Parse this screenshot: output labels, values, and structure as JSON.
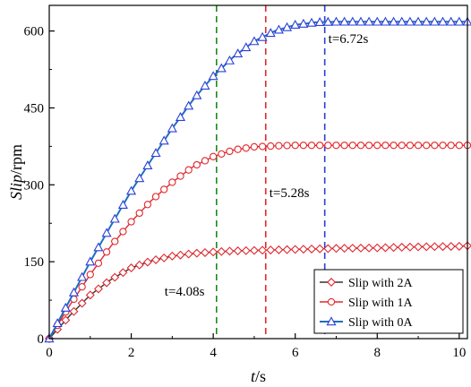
{
  "chart_data": {
    "type": "line",
    "xlabel_italic": "t",
    "xlabel_unit": "/s",
    "ylabel_italic": "Slip",
    "ylabel_unit": "/rpm",
    "xlim": [
      0,
      10.2
    ],
    "ylim": [
      0,
      650
    ],
    "xticks": [
      0,
      2,
      4,
      6,
      8,
      10
    ],
    "yticks": [
      0,
      150,
      300,
      450,
      600
    ],
    "grid": false,
    "legend_position": "bottom-right",
    "vlines": [
      {
        "x": 4.08,
        "color": "#1a8a1a",
        "label": "t=4.08s"
      },
      {
        "x": 5.28,
        "color": "#e0282e",
        "label": "t=5.28s"
      },
      {
        "x": 6.72,
        "color": "#2a3fd6",
        "label": "t=6.72s"
      }
    ],
    "series": [
      {
        "name": "Slip with 2A",
        "color": "#e0282e",
        "line_color": "#333333",
        "marker": "diamond",
        "points": [
          [
            0,
            0
          ],
          [
            0.5,
            45
          ],
          [
            1,
            85
          ],
          [
            1.5,
            115
          ],
          [
            2,
            138
          ],
          [
            2.5,
            152
          ],
          [
            3,
            161
          ],
          [
            3.5,
            166
          ],
          [
            4,
            169
          ],
          [
            4.5,
            171
          ],
          [
            5,
            172
          ],
          [
            6,
            174
          ],
          [
            7,
            176
          ],
          [
            8,
            177
          ],
          [
            9,
            179
          ],
          [
            10,
            180
          ],
          [
            10.2,
            181
          ]
        ]
      },
      {
        "name": "Slip with 1A",
        "color": "#e0282e",
        "line_color": "#e0282e",
        "marker": "circle",
        "points": [
          [
            0,
            0
          ],
          [
            0.5,
            65
          ],
          [
            1,
            125
          ],
          [
            1.5,
            180
          ],
          [
            2,
            228
          ],
          [
            2.5,
            270
          ],
          [
            3,
            305
          ],
          [
            3.5,
            335
          ],
          [
            4,
            355
          ],
          [
            4.5,
            368
          ],
          [
            5,
            374
          ],
          [
            5.5,
            376
          ],
          [
            6,
            377
          ],
          [
            7,
            377
          ],
          [
            8,
            377
          ],
          [
            9,
            377
          ],
          [
            10,
            377
          ],
          [
            10.2,
            377
          ]
        ]
      },
      {
        "name": "Slip with 0A",
        "color": "#2a3fd6",
        "line_color": "#1f6fc0",
        "marker": "triangle",
        "points": [
          [
            0,
            0
          ],
          [
            0.5,
            75
          ],
          [
            1,
            150
          ],
          [
            1.5,
            220
          ],
          [
            2,
            288
          ],
          [
            2.5,
            350
          ],
          [
            3,
            410
          ],
          [
            3.5,
            465
          ],
          [
            4,
            512
          ],
          [
            4.5,
            550
          ],
          [
            5,
            580
          ],
          [
            5.5,
            600
          ],
          [
            6,
            612
          ],
          [
            6.5,
            617
          ],
          [
            7,
            618
          ],
          [
            8,
            618
          ],
          [
            9,
            618
          ],
          [
            10,
            618
          ],
          [
            10.2,
            618
          ]
        ]
      }
    ]
  }
}
